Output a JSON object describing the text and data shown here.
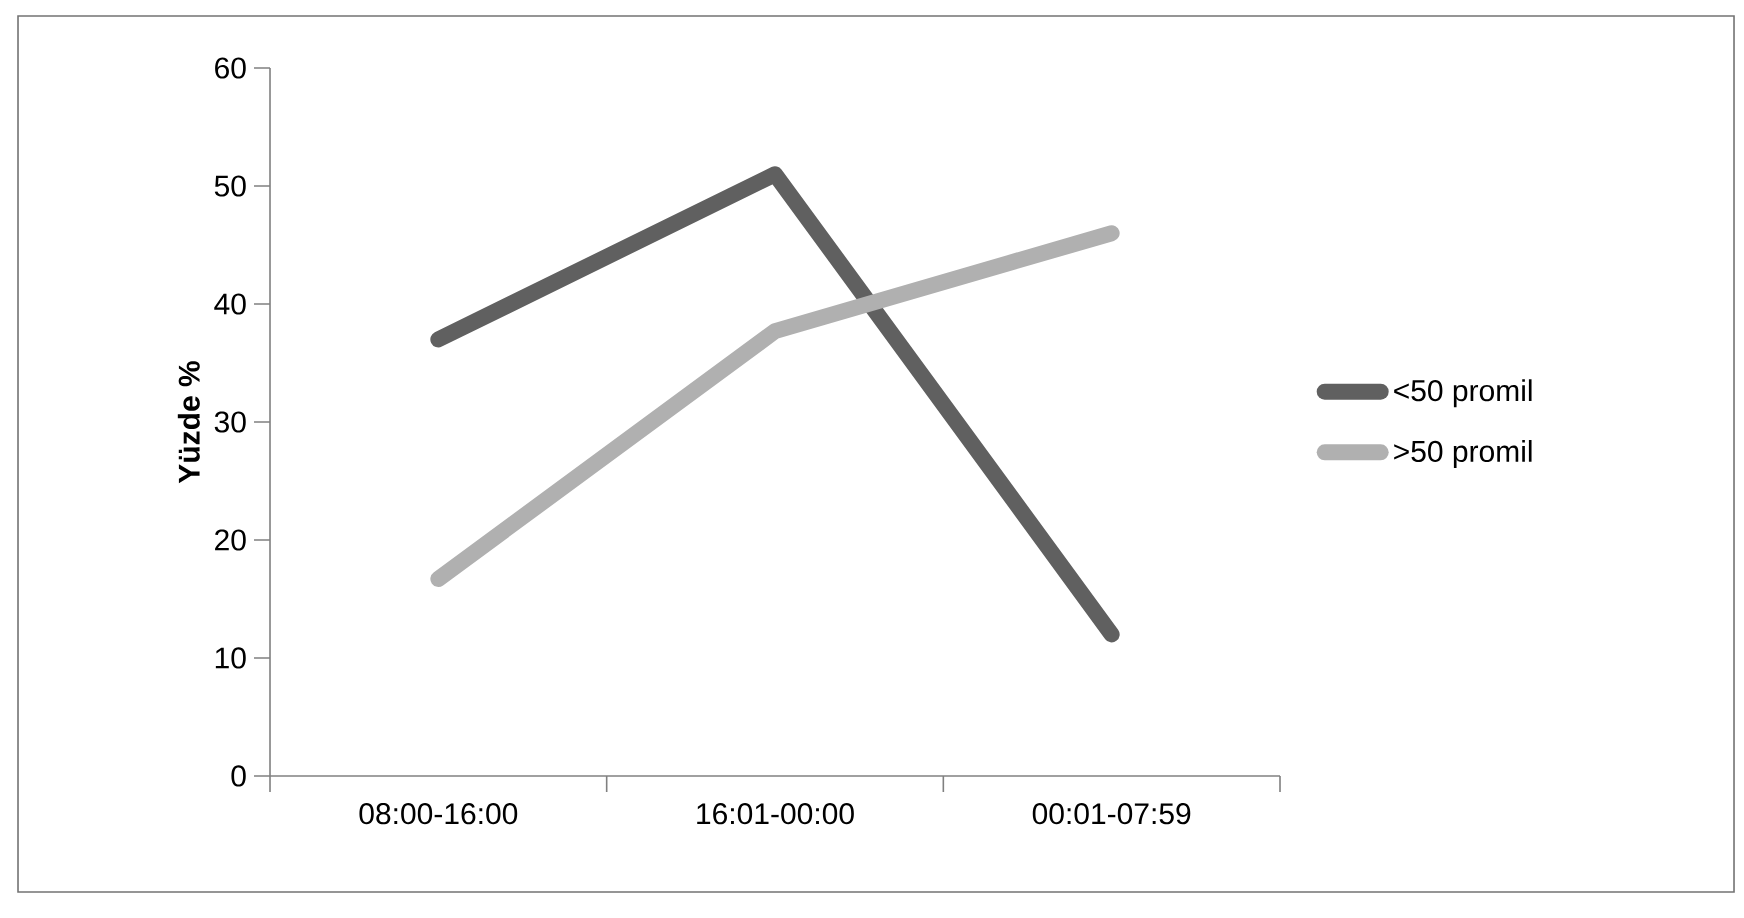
{
  "chart_data": {
    "type": "line",
    "ylabel": "Yüzde %",
    "categories": [
      "08:00-16:00",
      "16:01-00:00",
      "00:01-07:59"
    ],
    "series": [
      {
        "name": "<50 promil",
        "color": "#606060",
        "values": [
          37,
          51,
          12
        ]
      },
      {
        "name": ">50 promil",
        "color": "#b0b0b0",
        "values": [
          16.7,
          37.7,
          46
        ]
      }
    ],
    "ylim": [
      0,
      60
    ],
    "yticks": [
      0,
      10,
      20,
      30,
      40,
      50,
      60
    ],
    "legend": "right",
    "grid": false,
    "marker": "none",
    "line_style": "solid"
  }
}
